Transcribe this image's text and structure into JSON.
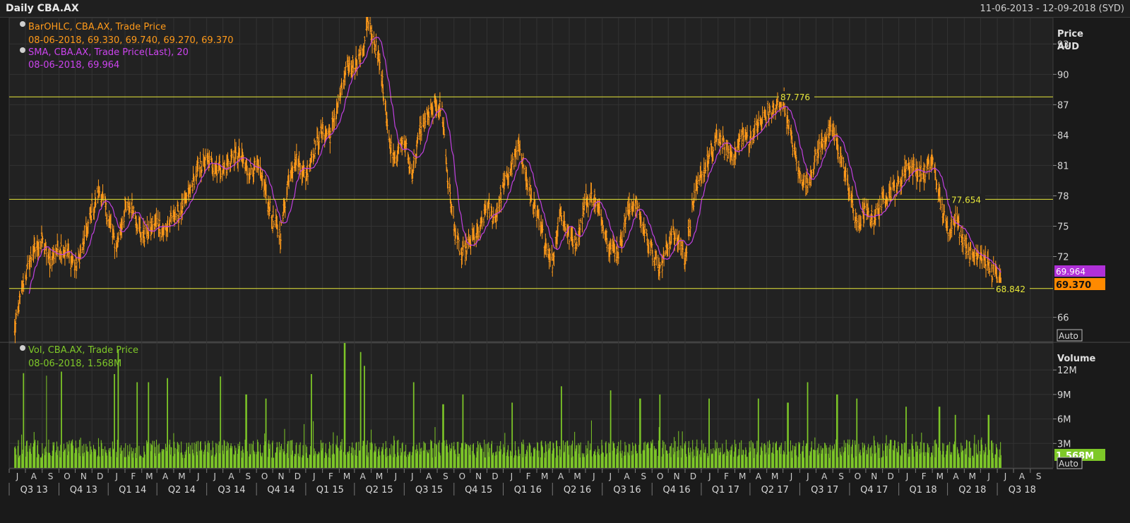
{
  "window": {
    "title": "Daily CBA.AX",
    "date_range": "11-06-2013 - 12-09-2018 (SYD)"
  },
  "colors": {
    "background": "#1a1a1a",
    "panel": "#222222",
    "grid": "#3a3a3a",
    "price_bars": "#ff9a1a",
    "sma": "#c040e0",
    "volume": "#7ec828",
    "levels": "#e8e83a"
  },
  "chart_data": [
    {
      "type": "bar",
      "name": "price",
      "legend": [
        {
          "line1": "BarOHLC, CBA.AX, Trade Price",
          "line2": "08-06-2018, 69.330, 69.740, 69.270, 69.370",
          "color": "#ff9a1a"
        },
        {
          "line1": "SMA, CBA.AX, Trade Price(Last),  20",
          "line2": "08-06-2018, 69.964",
          "color": "#cc44ee"
        }
      ],
      "axis_title": "Price",
      "axis_unit": "AUD",
      "y_ticks": [
        93,
        90,
        87,
        84,
        81,
        78,
        75,
        72,
        66
      ],
      "ylim": [
        63.6,
        95.6
      ],
      "auto_label": "Auto",
      "last_price": "69.370",
      "last_sma": "69.964",
      "levels": [
        {
          "value": 87.776,
          "label": "87.776"
        },
        {
          "value": 77.654,
          "label": "77.654"
        },
        {
          "value": 68.842,
          "label": "68.842"
        }
      ],
      "price_path": [
        [
          "2013-06-11",
          64.5
        ],
        [
          "2013-06-20",
          67.5
        ],
        [
          "2013-07-01",
          70.0
        ],
        [
          "2013-07-15",
          72.5
        ],
        [
          "2013-08-01",
          73.5
        ],
        [
          "2013-08-15",
          71.5
        ],
        [
          "2013-09-01",
          73.0
        ],
        [
          "2013-09-15",
          72.5
        ],
        [
          "2013-10-01",
          71.0
        ],
        [
          "2013-10-15",
          73.0
        ],
        [
          "2013-11-01",
          76.5
        ],
        [
          "2013-11-15",
          78.5
        ],
        [
          "2013-12-01",
          76.0
        ],
        [
          "2013-12-15",
          73.0
        ],
        [
          "2014-01-01",
          76.5
        ],
        [
          "2014-01-15",
          77.0
        ],
        [
          "2014-02-01",
          74.0
        ],
        [
          "2014-02-15",
          74.5
        ],
        [
          "2014-03-01",
          75.5
        ],
        [
          "2014-03-15",
          74.5
        ],
        [
          "2014-04-01",
          76.0
        ],
        [
          "2014-04-15",
          76.5
        ],
        [
          "2014-05-01",
          78.5
        ],
        [
          "2014-05-15",
          80.5
        ],
        [
          "2014-06-01",
          81.5
        ],
        [
          "2014-06-15",
          81.0
        ],
        [
          "2014-07-01",
          80.5
        ],
        [
          "2014-07-15",
          81.5
        ],
        [
          "2014-08-01",
          82.0
        ],
        [
          "2014-08-15",
          80.5
        ],
        [
          "2014-09-01",
          81.0
        ],
        [
          "2014-09-15",
          79.0
        ],
        [
          "2014-10-01",
          75.5
        ],
        [
          "2014-10-15",
          74.0
        ],
        [
          "2014-11-01",
          80.5
        ],
        [
          "2014-11-15",
          81.5
        ],
        [
          "2014-12-01",
          80.0
        ],
        [
          "2014-12-15",
          82.5
        ],
        [
          "2015-01-01",
          84.5
        ],
        [
          "2015-01-15",
          84.0
        ],
        [
          "2015-02-01",
          87.5
        ],
        [
          "2015-02-15",
          90.5
        ],
        [
          "2015-03-01",
          91.0
        ],
        [
          "2015-03-15",
          92.0
        ],
        [
          "2015-03-25",
          95.0
        ],
        [
          "2015-04-05",
          93.5
        ],
        [
          "2015-04-15",
          91.5
        ],
        [
          "2015-04-25",
          88.0
        ],
        [
          "2015-05-05",
          83.0
        ],
        [
          "2015-05-15",
          82.0
        ],
        [
          "2015-06-01",
          83.5
        ],
        [
          "2015-06-15",
          80.0
        ],
        [
          "2015-07-01",
          84.5
        ],
        [
          "2015-07-15",
          86.0
        ],
        [
          "2015-08-01",
          87.0
        ],
        [
          "2015-08-10",
          86.5
        ],
        [
          "2015-08-20",
          80.0
        ],
        [
          "2015-09-01",
          75.0
        ],
        [
          "2015-09-15",
          72.0
        ],
        [
          "2015-10-01",
          73.5
        ],
        [
          "2015-10-15",
          74.0
        ],
        [
          "2015-11-01",
          77.0
        ],
        [
          "2015-11-15",
          75.5
        ],
        [
          "2015-12-01",
          79.0
        ],
        [
          "2015-12-15",
          80.5
        ],
        [
          "2016-01-01",
          83.0
        ],
        [
          "2016-01-15",
          79.0
        ],
        [
          "2016-02-01",
          76.0
        ],
        [
          "2016-02-15",
          73.5
        ],
        [
          "2016-03-01",
          71.5
        ],
        [
          "2016-03-15",
          76.5
        ],
        [
          "2016-04-01",
          74.0
        ],
        [
          "2016-04-15",
          73.5
        ],
        [
          "2016-05-01",
          77.5
        ],
        [
          "2016-05-15",
          78.0
        ],
        [
          "2016-06-01",
          75.5
        ],
        [
          "2016-06-15",
          73.0
        ],
        [
          "2016-07-01",
          72.5
        ],
        [
          "2016-07-15",
          76.0
        ],
        [
          "2016-08-01",
          77.5
        ],
        [
          "2016-08-15",
          75.0
        ],
        [
          "2016-09-01",
          72.5
        ],
        [
          "2016-09-15",
          70.5
        ],
        [
          "2016-10-01",
          73.5
        ],
        [
          "2016-10-15",
          74.5
        ],
        [
          "2016-11-01",
          72.0
        ],
        [
          "2016-11-15",
          77.0
        ],
        [
          "2016-12-01",
          80.0
        ],
        [
          "2016-12-15",
          81.5
        ],
        [
          "2017-01-01",
          84.0
        ],
        [
          "2017-01-15",
          82.5
        ],
        [
          "2017-02-01",
          82.0
        ],
        [
          "2017-02-15",
          84.0
        ],
        [
          "2017-03-01",
          83.5
        ],
        [
          "2017-03-15",
          85.0
        ],
        [
          "2017-04-01",
          86.0
        ],
        [
          "2017-04-15",
          86.5
        ],
        [
          "2017-05-01",
          87.5
        ],
        [
          "2017-05-15",
          84.0
        ],
        [
          "2017-06-01",
          80.0
        ],
        [
          "2017-06-15",
          79.0
        ],
        [
          "2017-07-01",
          82.0
        ],
        [
          "2017-07-15",
          83.5
        ],
        [
          "2017-08-01",
          84.5
        ],
        [
          "2017-08-15",
          82.0
        ],
        [
          "2017-09-01",
          78.5
        ],
        [
          "2017-09-15",
          75.0
        ],
        [
          "2017-10-01",
          76.5
        ],
        [
          "2017-10-15",
          75.5
        ],
        [
          "2017-11-01",
          77.5
        ],
        [
          "2017-11-15",
          78.5
        ],
        [
          "2017-12-01",
          79.0
        ],
        [
          "2017-12-15",
          81.0
        ],
        [
          "2018-01-01",
          80.5
        ],
        [
          "2018-01-15",
          80.0
        ],
        [
          "2018-02-01",
          81.5
        ],
        [
          "2018-02-15",
          77.5
        ],
        [
          "2018-03-01",
          74.5
        ],
        [
          "2018-03-15",
          76.0
        ],
        [
          "2018-04-01",
          73.5
        ],
        [
          "2018-04-15",
          72.0
        ],
        [
          "2018-05-01",
          72.5
        ],
        [
          "2018-05-15",
          71.0
        ],
        [
          "2018-06-01",
          70.0
        ],
        [
          "2018-06-08",
          69.37
        ]
      ]
    },
    {
      "type": "bar",
      "name": "volume",
      "legend": [
        {
          "line1": "Vol, CBA.AX, Trade Price",
          "line2": "08-06-2018, 1.568M",
          "color": "#7ec828"
        }
      ],
      "axis_title": "Volume",
      "y_ticks": [
        {
          "value": 12,
          "label": "12M"
        },
        {
          "value": 9,
          "label": "9M"
        },
        {
          "value": 6,
          "label": "6M"
        },
        {
          "value": 3,
          "label": "3M"
        }
      ],
      "ylim": [
        0,
        15.3
      ],
      "unit": "millions",
      "auto_label": "Auto",
      "last_volume": "1.568M",
      "typical_volume_range": [
        1.2,
        3.5
      ],
      "spikes": [
        [
          "2013-06-28",
          11.6
        ],
        [
          "2013-08-10",
          11.3
        ],
        [
          "2013-09-06",
          11.8
        ],
        [
          "2013-12-13",
          11.5
        ],
        [
          "2013-12-20",
          14.5
        ],
        [
          "2014-01-24",
          10.5
        ],
        [
          "2014-02-14",
          10.5
        ],
        [
          "2014-03-21",
          11.0
        ],
        [
          "2014-06-27",
          11.2
        ],
        [
          "2014-08-13",
          9.0
        ],
        [
          "2014-09-19",
          8.5
        ],
        [
          "2014-12-12",
          11.5
        ],
        [
          "2015-02-11",
          15.3
        ],
        [
          "2015-03-13",
          14.2
        ],
        [
          "2015-03-20",
          12.5
        ],
        [
          "2015-06-19",
          10.5
        ],
        [
          "2015-08-12",
          7.8
        ],
        [
          "2015-09-18",
          9.0
        ],
        [
          "2015-12-18",
          8.0
        ],
        [
          "2016-03-18",
          10.0
        ],
        [
          "2016-06-17",
          9.5
        ],
        [
          "2016-08-10",
          8.5
        ],
        [
          "2016-09-16",
          9.0
        ],
        [
          "2016-12-16",
          8.5
        ],
        [
          "2017-03-17",
          8.5
        ],
        [
          "2017-05-10",
          8.0
        ],
        [
          "2017-06-16",
          10.5
        ],
        [
          "2017-08-09",
          9.0
        ],
        [
          "2017-09-15",
          8.5
        ],
        [
          "2017-12-15",
          7.5
        ],
        [
          "2018-02-14",
          7.5
        ],
        [
          "2018-03-16",
          6.5
        ],
        [
          "2018-05-16",
          6.5
        ]
      ]
    }
  ],
  "x_axis": {
    "range": [
      "2013-06-01",
      "2018-09-12"
    ],
    "months": [
      "J",
      "A",
      "S",
      "O",
      "N",
      "D",
      "J",
      "F",
      "M",
      "A",
      "M",
      "J",
      "J",
      "A",
      "S",
      "O",
      "N",
      "D",
      "J",
      "F",
      "M",
      "A",
      "M",
      "J",
      "J",
      "A",
      "S",
      "O",
      "N",
      "D",
      "J",
      "F",
      "M",
      "A",
      "M",
      "J",
      "J",
      "A",
      "S",
      "O",
      "N",
      "D",
      "J",
      "F",
      "M",
      "A",
      "M",
      "J",
      "J",
      "A",
      "S",
      "O",
      "N",
      "D",
      "J",
      "F",
      "M",
      "A",
      "M",
      "J",
      "J",
      "A",
      "S"
    ],
    "quarters": [
      "Q3 13",
      "Q4 13",
      "Q1 14",
      "Q2 14",
      "Q3 14",
      "Q4 14",
      "Q1 15",
      "Q2 15",
      "Q3 15",
      "Q4 15",
      "Q1 16",
      "Q2 16",
      "Q3 16",
      "Q4 16",
      "Q1 17",
      "Q2 17",
      "Q3 17",
      "Q4 17",
      "Q1 18",
      "Q2 18",
      "Q3 18"
    ]
  }
}
